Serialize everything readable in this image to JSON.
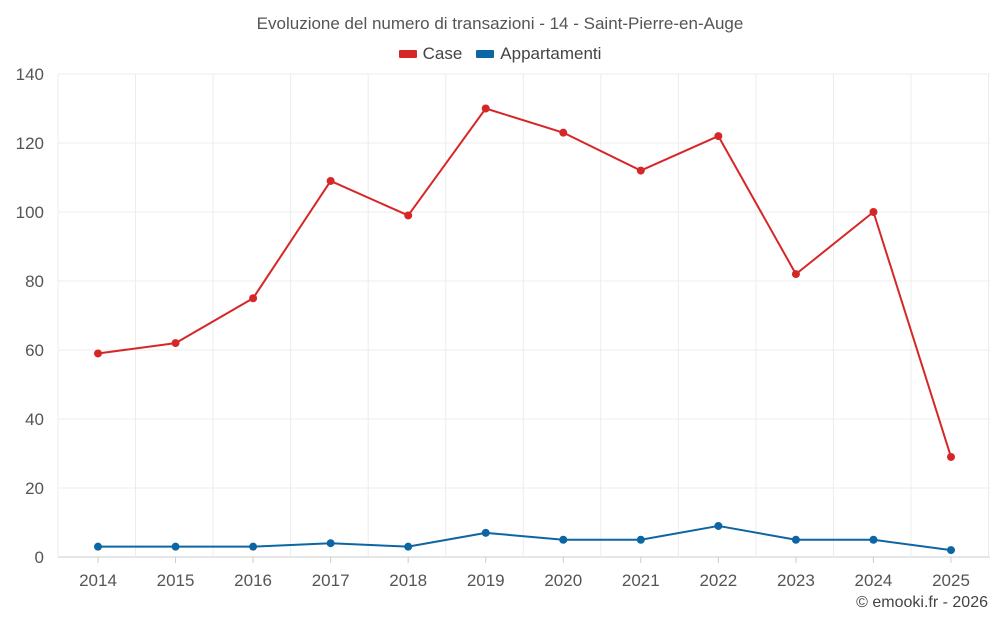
{
  "chart_data": {
    "type": "line",
    "title": "Evoluzione del numero di transazioni - 14 - Saint-Pierre-en-Auge",
    "categories": [
      "2014",
      "2015",
      "2016",
      "2017",
      "2018",
      "2019",
      "2020",
      "2021",
      "2022",
      "2023",
      "2024",
      "2025"
    ],
    "series": [
      {
        "name": "Case",
        "color": "#d62728",
        "values": [
          59,
          62,
          75,
          109,
          99,
          130,
          123,
          112,
          122,
          82,
          100,
          29
        ]
      },
      {
        "name": "Appartamenti",
        "color": "#0b66a3",
        "values": [
          3,
          3,
          3,
          4,
          3,
          7,
          5,
          5,
          9,
          5,
          5,
          2
        ]
      }
    ],
    "y_ticks": [
      "0",
      "20",
      "40",
      "60",
      "80",
      "100",
      "120",
      "140"
    ],
    "ylim": [
      0,
      140
    ],
    "grid": true,
    "legend_position": "top-center",
    "xlabel": "",
    "ylabel": ""
  },
  "credit": "© emooki.fr - 2026"
}
